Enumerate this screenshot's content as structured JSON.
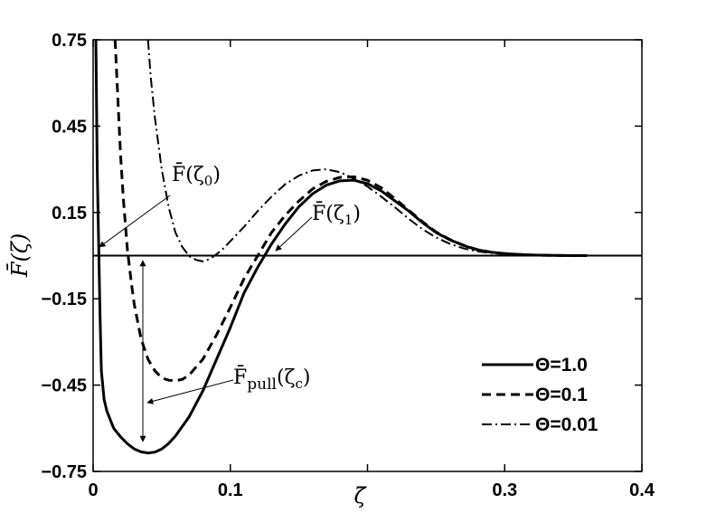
{
  "chart_data": {
    "type": "line",
    "xlabel": "ζ̄",
    "ylabel": "F̄(ζ)",
    "xlim": [
      0,
      0.4
    ],
    "ylim": [
      -0.75,
      0.75
    ],
    "xticks": [
      0,
      0.1,
      0.2,
      0.3,
      0.4
    ],
    "xtick_labels": [
      "0",
      "0.1",
      "",
      "0.3",
      "0.4"
    ],
    "yticks": [
      0.75,
      0.45,
      0.15,
      -0.15,
      -0.45,
      -0.75
    ],
    "ytick_labels": [
      "0.75",
      "0.45",
      "0.15",
      "−0.15",
      "−0.45",
      "−0.75"
    ],
    "grid": false,
    "legend_position": "bottom-right",
    "series": [
      {
        "name": "Θ=1.0",
        "style": "solid",
        "x": [
          0.002,
          0.003,
          0.004,
          0.005,
          0.006,
          0.008,
          0.01,
          0.015,
          0.02,
          0.025,
          0.03,
          0.035,
          0.04,
          0.045,
          0.05,
          0.055,
          0.06,
          0.07,
          0.08,
          0.09,
          0.1,
          0.11,
          0.12,
          0.125,
          0.13,
          0.14,
          0.15,
          0.16,
          0.17,
          0.18,
          0.19,
          0.2,
          0.21,
          0.22,
          0.23,
          0.24,
          0.25,
          0.26,
          0.27,
          0.28,
          0.29,
          0.3,
          0.31,
          0.32,
          0.33,
          0.34,
          0.35,
          0.36
        ],
        "values": [
          0.75,
          0.3,
          0.05,
          -0.2,
          -0.4,
          -0.5,
          -0.54,
          -0.6,
          -0.63,
          -0.654,
          -0.672,
          -0.682,
          -0.686,
          -0.683,
          -0.672,
          -0.653,
          -0.627,
          -0.56,
          -0.47,
          -0.36,
          -0.25,
          -0.13,
          -0.04,
          0.0,
          0.04,
          0.11,
          0.17,
          0.215,
          0.245,
          0.26,
          0.262,
          0.25,
          0.225,
          0.19,
          0.155,
          0.115,
          0.08,
          0.055,
          0.035,
          0.02,
          0.012,
          0.007,
          0.004,
          0.002,
          0.001,
          0.0005,
          0.0002,
          0.0
        ]
      },
      {
        "name": "Θ=0.1",
        "style": "dashed",
        "x": [
          0.016,
          0.018,
          0.02,
          0.022,
          0.025,
          0.028,
          0.03,
          0.035,
          0.04,
          0.045,
          0.05,
          0.055,
          0.06,
          0.065,
          0.07,
          0.08,
          0.09,
          0.1,
          0.11,
          0.12,
          0.125,
          0.13,
          0.14,
          0.15,
          0.16,
          0.17,
          0.18,
          0.19,
          0.2,
          0.21,
          0.22,
          0.23,
          0.24,
          0.25,
          0.26,
          0.27,
          0.28,
          0.29,
          0.3,
          0.31,
          0.32,
          0.33,
          0.34,
          0.35,
          0.36
        ],
        "values": [
          0.75,
          0.55,
          0.35,
          0.2,
          0.02,
          -0.1,
          -0.17,
          -0.29,
          -0.36,
          -0.4,
          -0.425,
          -0.433,
          -0.435,
          -0.43,
          -0.415,
          -0.36,
          -0.275,
          -0.18,
          -0.08,
          0.0,
          0.04,
          0.08,
          0.14,
          0.19,
          0.232,
          0.258,
          0.272,
          0.274,
          0.262,
          0.236,
          0.198,
          0.158,
          0.118,
          0.082,
          0.056,
          0.036,
          0.021,
          0.012,
          0.007,
          0.004,
          0.002,
          0.001,
          0.0005,
          0.0002,
          0.0
        ]
      },
      {
        "name": "Θ=0.01",
        "style": "dashdot",
        "x": [
          0.04,
          0.042,
          0.045,
          0.05,
          0.055,
          0.06,
          0.065,
          0.07,
          0.075,
          0.08,
          0.085,
          0.09,
          0.095,
          0.1,
          0.11,
          0.12,
          0.13,
          0.14,
          0.15,
          0.16,
          0.17,
          0.18,
          0.19,
          0.2,
          0.21,
          0.22,
          0.23,
          0.24,
          0.25,
          0.26,
          0.27,
          0.28,
          0.29,
          0.3,
          0.31,
          0.32,
          0.33,
          0.34,
          0.35,
          0.36
        ],
        "values": [
          0.75,
          0.62,
          0.48,
          0.3,
          0.17,
          0.08,
          0.03,
          -0.002,
          -0.015,
          -0.02,
          -0.012,
          0.005,
          0.025,
          0.05,
          0.1,
          0.155,
          0.205,
          0.248,
          0.278,
          0.296,
          0.3,
          0.29,
          0.268,
          0.24,
          0.205,
          0.168,
          0.128,
          0.092,
          0.063,
          0.041,
          0.025,
          0.015,
          0.009,
          0.005,
          0.003,
          0.002,
          0.001,
          0.0005,
          0.0002,
          0.0
        ]
      }
    ],
    "annotations": [
      {
        "base": "F̄(ζ",
        "sub": "0",
        "close": ")"
      },
      {
        "base": "F̄(ζ",
        "sub": "1",
        "close": ")"
      },
      {
        "base": "F̄",
        "sub": "pull",
        "mid": "(ζ",
        "sub2": "c",
        "close": ")"
      }
    ]
  }
}
